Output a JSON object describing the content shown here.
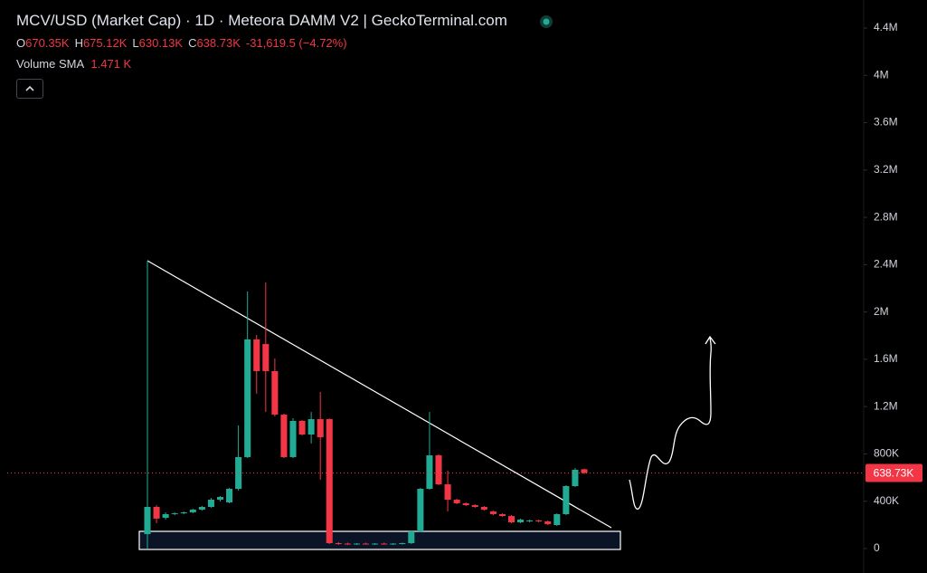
{
  "chart_data": {
    "type": "candlestick",
    "title": "MCV/USD (Market Cap) · 1D · Meteora DAMM V2 | GeckoTerminal.com",
    "legend": {
      "items": [
        {
          "key": "O",
          "value": "670.35K"
        },
        {
          "key": "H",
          "value": "675.12K"
        },
        {
          "key": "L",
          "value": "630.13K"
        },
        {
          "key": "C",
          "value": "638.73K"
        }
      ],
      "change": "-31,619.5 (−4.72%)"
    },
    "indicator": {
      "name": "Volume SMA",
      "value": "1.471 K"
    },
    "up_color": "#22ab94",
    "down_color": "#f23645",
    "ylim": [
      0,
      4400000
    ],
    "yticks": [
      0,
      {
        "value": 400000,
        "label": "400K"
      },
      {
        "value": 800000,
        "label": "800K"
      },
      {
        "value": 1200000,
        "label": "1.2M"
      },
      {
        "value": 1600000,
        "label": "1.6M"
      },
      {
        "value": 2000000,
        "label": "2M"
      },
      {
        "value": 2400000,
        "label": "2.4M"
      },
      {
        "value": 2800000,
        "label": "2.8M"
      },
      {
        "value": 3200000,
        "label": "3.2M"
      },
      {
        "value": 3600000,
        "label": "3.6M"
      },
      {
        "value": 4000000,
        "label": "4M"
      },
      {
        "value": 4400000,
        "label": "4.4M"
      }
    ],
    "last_price": {
      "value": 638730,
      "label": "638.73K"
    },
    "open": [
      122000,
      352000,
      260000,
      291000,
      298000,
      306000,
      329000,
      352000,
      413000,
      390000,
      505000,
      773000,
      1768000,
      1729000,
      1500000,
      1132000,
      773000,
      1079000,
      964000,
      1094000,
      1094000,
      46000,
      42000,
      38000,
      42000,
      38000,
      42000,
      38000,
      42000,
      46000,
      145000,
      505000,
      788000,
      543000,
      413000,
      383000,
      367000,
      352000,
      314000,
      291000,
      275000,
      222000,
      230000,
      237000,
      230000,
      199000,
      291000,
      528000,
      670350
    ],
    "high": [
      2433000,
      367000,
      306000,
      306000,
      314000,
      337000,
      360000,
      428000,
      444000,
      513000,
      1041000,
      2173000,
      1806000,
      2250000,
      1607000,
      1140000,
      1102000,
      1087000,
      1155000,
      1324000,
      1100000,
      54000,
      50000,
      46000,
      50000,
      46000,
      50000,
      46000,
      50000,
      153000,
      513000,
      1155000,
      796000,
      658000,
      421000,
      390000,
      375000,
      360000,
      321000,
      298000,
      283000,
      253000,
      245000,
      245000,
      237000,
      298000,
      536000,
      681000,
      675120
    ],
    "low": [
      0,
      214000,
      245000,
      283000,
      291000,
      298000,
      321000,
      344000,
      398000,
      383000,
      490000,
      765000,
      1309000,
      1155000,
      1117000,
      765000,
      765000,
      957000,
      888000,
      582000,
      38000,
      31000,
      31000,
      31000,
      34000,
      31000,
      34000,
      31000,
      34000,
      38000,
      138000,
      497000,
      536000,
      314000,
      375000,
      360000,
      344000,
      321000,
      283000,
      268000,
      214000,
      214000,
      222000,
      222000,
      199000,
      191000,
      283000,
      520000,
      630130
    ],
    "close": [
      352000,
      253000,
      291000,
      298000,
      306000,
      329000,
      352000,
      413000,
      436000,
      505000,
      773000,
      1768000,
      1500000,
      1500000,
      1132000,
      773000,
      1079000,
      964000,
      1094000,
      941000,
      46000,
      42000,
      38000,
      42000,
      38000,
      42000,
      38000,
      42000,
      46000,
      145000,
      505000,
      788000,
      543000,
      413000,
      383000,
      367000,
      352000,
      329000,
      291000,
      275000,
      222000,
      245000,
      237000,
      230000,
      207000,
      291000,
      528000,
      666000,
      638730
    ]
  }
}
